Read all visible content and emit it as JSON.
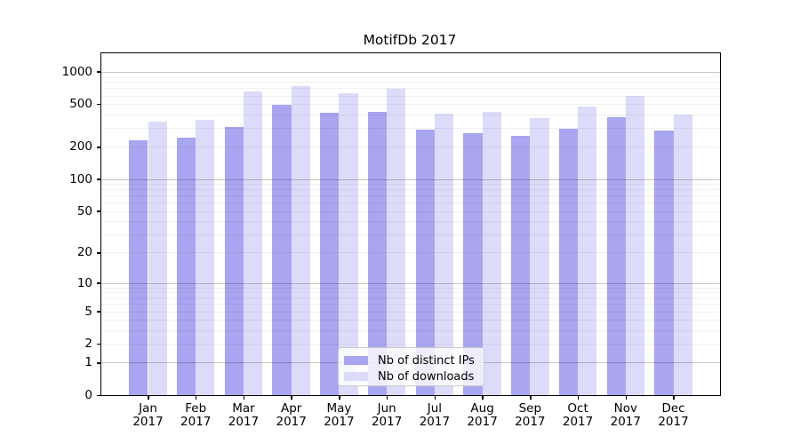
{
  "title": "MotifDb 2017",
  "colors": {
    "distinct_ips": "#a8a5f1",
    "downloads": "#dcdbf9",
    "grid_major": "rgba(0,0,0,0.22)",
    "grid_minor": "rgba(0,0,0,0.055)",
    "spine": "#000000",
    "legend_border": "#c9c9c9",
    "text": "#000000"
  },
  "chart_data": {
    "type": "bar",
    "title": "MotifDb 2017",
    "categories": [
      "Jan",
      "Feb",
      "Mar",
      "Apr",
      "May",
      "Jun",
      "Jul",
      "Aug",
      "Sep",
      "Oct",
      "Nov",
      "Dec"
    ],
    "year_label": "2017",
    "series": [
      {
        "name": "Nb of distinct IPs",
        "values": [
          232,
          243,
          304,
          490,
          411,
          425,
          290,
          269,
          254,
          296,
          379,
          283
        ]
      },
      {
        "name": "Nb of downloads",
        "values": [
          340,
          356,
          650,
          730,
          630,
          690,
          409,
          419,
          370,
          470,
          590,
          396
        ]
      }
    ],
    "yscale": "log1p",
    "ylim": [
      0,
      1480
    ],
    "yticks": [
      1000,
      500,
      200,
      100,
      50,
      20,
      10,
      5,
      2,
      1,
      0
    ],
    "ytick_labels": [
      "1000",
      "500",
      "200",
      "100",
      "50",
      "20",
      "10",
      "5",
      "2",
      "1",
      "0"
    ],
    "major_grid_values": [
      1000,
      100,
      10,
      1
    ],
    "grid": "on",
    "legend_position": "lower center"
  }
}
